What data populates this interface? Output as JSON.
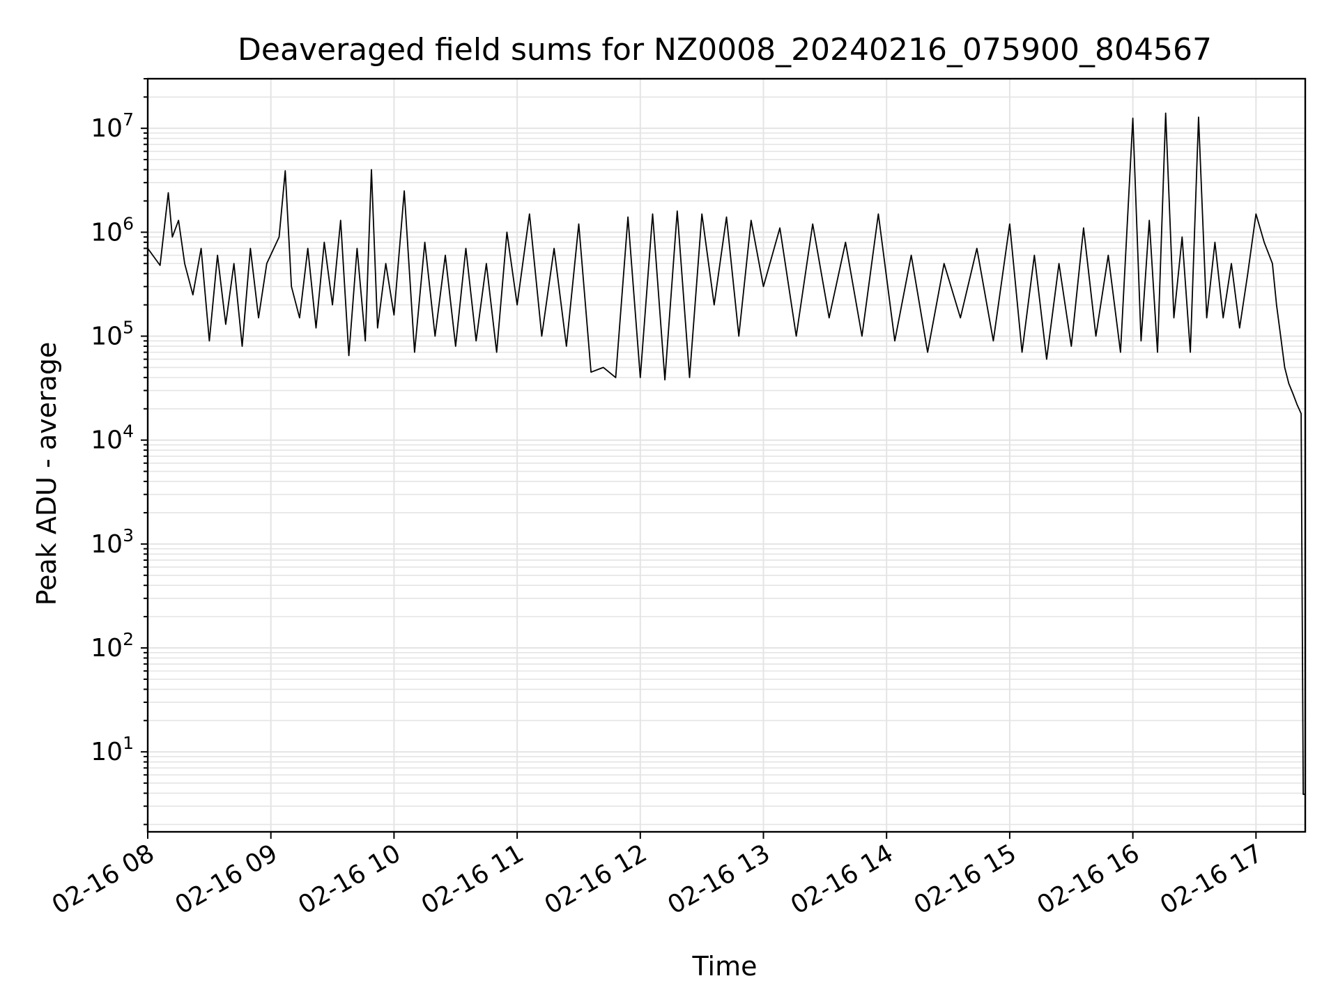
{
  "chart_data": {
    "type": "line",
    "title": "Deaveraged field sums for NZ0008_20240216_075900_804567",
    "xlabel": "Time",
    "ylabel": "Peak ADU - average",
    "yscale": "log",
    "ylim": [
      1.7,
      30000000
    ],
    "xlim": [
      "2024-02-16 08:00",
      "2024-02-16 17:24"
    ],
    "grid": true,
    "grid_minor": true,
    "line_color": "#000000",
    "x_ticks": [
      {
        "label": "02-16 08",
        "t": "2024-02-16 08:00"
      },
      {
        "label": "02-16 09",
        "t": "2024-02-16 09:00"
      },
      {
        "label": "02-16 10",
        "t": "2024-02-16 10:00"
      },
      {
        "label": "02-16 11",
        "t": "2024-02-16 11:00"
      },
      {
        "label": "02-16 12",
        "t": "2024-02-16 12:00"
      },
      {
        "label": "02-16 13",
        "t": "2024-02-16 13:00"
      },
      {
        "label": "02-16 14",
        "t": "2024-02-16 14:00"
      },
      {
        "label": "02-16 15",
        "t": "2024-02-16 15:00"
      },
      {
        "label": "02-16 16",
        "t": "2024-02-16 16:00"
      },
      {
        "label": "02-16 17",
        "t": "2024-02-16 17:00"
      }
    ],
    "y_ticks": [
      {
        "base": "10",
        "exp": "1",
        "value": 10
      },
      {
        "base": "10",
        "exp": "2",
        "value": 100
      },
      {
        "base": "10",
        "exp": "3",
        "value": 1000
      },
      {
        "base": "10",
        "exp": "4",
        "value": 10000
      },
      {
        "base": "10",
        "exp": "5",
        "value": 100000
      },
      {
        "base": "10",
        "exp": "6",
        "value": 1000000
      },
      {
        "base": "10",
        "exp": "7",
        "value": 10000000
      }
    ],
    "series": [
      {
        "x": [
          "2024-02-16 08:00",
          "2024-02-16 08:06",
          "2024-02-16 08:10",
          "2024-02-16 08:12",
          "2024-02-16 08:15",
          "2024-02-16 08:18",
          "2024-02-16 08:22",
          "2024-02-16 08:26",
          "2024-02-16 08:30",
          "2024-02-16 08:34",
          "2024-02-16 08:38",
          "2024-02-16 08:42",
          "2024-02-16 08:46",
          "2024-02-16 08:50",
          "2024-02-16 08:54",
          "2024-02-16 08:58",
          "2024-02-16 09:04",
          "2024-02-16 09:07",
          "2024-02-16 09:10",
          "2024-02-16 09:14",
          "2024-02-16 09:18",
          "2024-02-16 09:22",
          "2024-02-16 09:26",
          "2024-02-16 09:30",
          "2024-02-16 09:34",
          "2024-02-16 09:38",
          "2024-02-16 09:42",
          "2024-02-16 09:46",
          "2024-02-16 09:49",
          "2024-02-16 09:52",
          "2024-02-16 09:56",
          "2024-02-16 10:00",
          "2024-02-16 10:05",
          "2024-02-16 10:10",
          "2024-02-16 10:15",
          "2024-02-16 10:20",
          "2024-02-16 10:25",
          "2024-02-16 10:30",
          "2024-02-16 10:35",
          "2024-02-16 10:40",
          "2024-02-16 10:45",
          "2024-02-16 10:50",
          "2024-02-16 10:55",
          "2024-02-16 11:00",
          "2024-02-16 11:06",
          "2024-02-16 11:12",
          "2024-02-16 11:18",
          "2024-02-16 11:24",
          "2024-02-16 11:30",
          "2024-02-16 11:36",
          "2024-02-16 11:42",
          "2024-02-16 11:48",
          "2024-02-16 11:54",
          "2024-02-16 12:00",
          "2024-02-16 12:06",
          "2024-02-16 12:12",
          "2024-02-16 12:18",
          "2024-02-16 12:24",
          "2024-02-16 12:30",
          "2024-02-16 12:36",
          "2024-02-16 12:42",
          "2024-02-16 12:48",
          "2024-02-16 12:54",
          "2024-02-16 13:00",
          "2024-02-16 13:08",
          "2024-02-16 13:16",
          "2024-02-16 13:24",
          "2024-02-16 13:32",
          "2024-02-16 13:40",
          "2024-02-16 13:48",
          "2024-02-16 13:56",
          "2024-02-16 14:04",
          "2024-02-16 14:12",
          "2024-02-16 14:20",
          "2024-02-16 14:28",
          "2024-02-16 14:36",
          "2024-02-16 14:44",
          "2024-02-16 14:52",
          "2024-02-16 15:00",
          "2024-02-16 15:06",
          "2024-02-16 15:12",
          "2024-02-16 15:18",
          "2024-02-16 15:24",
          "2024-02-16 15:30",
          "2024-02-16 15:36",
          "2024-02-16 15:42",
          "2024-02-16 15:48",
          "2024-02-16 15:54",
          "2024-02-16 16:00",
          "2024-02-16 16:04",
          "2024-02-16 16:08",
          "2024-02-16 16:12",
          "2024-02-16 16:16",
          "2024-02-16 16:20",
          "2024-02-16 16:24",
          "2024-02-16 16:28",
          "2024-02-16 16:32",
          "2024-02-16 16:36",
          "2024-02-16 16:40",
          "2024-02-16 16:44",
          "2024-02-16 16:48",
          "2024-02-16 16:52",
          "2024-02-16 16:56",
          "2024-02-16 17:00",
          "2024-02-16 17:04",
          "2024-02-16 17:08",
          "2024-02-16 17:10",
          "2024-02-16 17:12",
          "2024-02-16 17:14",
          "2024-02-16 17:16",
          "2024-02-16 17:18",
          "2024-02-16 17:20",
          "2024-02-16 17:22",
          "2024-02-16 17:23",
          "2024-02-16 17:24"
        ],
        "y": [
          700000,
          480000,
          2400000,
          900000,
          1300000,
          500000,
          250000,
          700000,
          90000,
          600000,
          130000,
          500000,
          80000,
          700000,
          150000,
          500000,
          900000,
          3900000,
          300000,
          150000,
          700000,
          120000,
          800000,
          200000,
          1300000,
          65000,
          700000,
          90000,
          4000000,
          120000,
          500000,
          160000,
          2500000,
          70000,
          800000,
          100000,
          600000,
          80000,
          700000,
          90000,
          500000,
          70000,
          1000000,
          200000,
          1500000,
          100000,
          700000,
          80000,
          1200000,
          45000,
          50000,
          40000,
          1400000,
          40000,
          1500000,
          38000,
          1600000,
          40000,
          1500000,
          200000,
          1400000,
          100000,
          1300000,
          300000,
          1100000,
          100000,
          1200000,
          150000,
          800000,
          100000,
          1500000,
          90000,
          600000,
          70000,
          500000,
          150000,
          700000,
          90000,
          1200000,
          70000,
          600000,
          60000,
          500000,
          80000,
          1100000,
          100000,
          600000,
          70000,
          12500000,
          90000,
          1300000,
          70000,
          14000000,
          150000,
          900000,
          70000,
          12800000,
          150000,
          800000,
          150000,
          500000,
          120000,
          400000,
          1500000,
          800000,
          500000,
          200000,
          100000,
          50000,
          35000,
          28000,
          22000,
          18000,
          3.9,
          3.9
        ]
      }
    ]
  }
}
